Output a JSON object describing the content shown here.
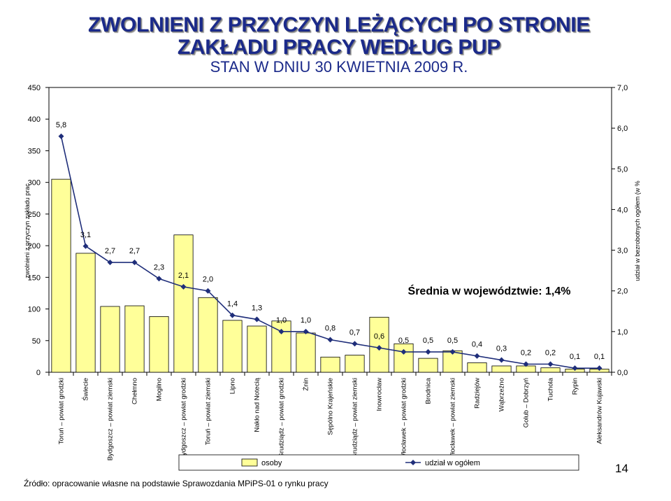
{
  "title_line1": "ZWOLNIENI Z PRZYCZYN LEŻĄCYCH PO STRONIE",
  "title_line2": "ZAKŁADU PRACY WEDŁUG PUP",
  "subtitle": "STAN W DNIU 30 KWIETNIA 2009 R.",
  "source": "Źródło: opracowanie własne na podstawie Sprawozdania MPiPS-01 o rynku pracy",
  "page_number": "14",
  "colors": {
    "bar": "#ffff99",
    "line": "#1f2e7a",
    "title": "#1b2a8a"
  },
  "chart_data": {
    "type": "bar",
    "categories": [
      "Toruń – powiat grodzki",
      "Świecie",
      "Bydgoszcz – powiat ziemski",
      "Chełmno",
      "Mogilno",
      "Bydgoszcz – powiat grodzki",
      "Toruń – powiat ziemski",
      "Lipno",
      "Nakło nad Notecią",
      "Grudziądz – powiat grodzki",
      "Żnin",
      "Sępólno Krajeńskie",
      "Grudziądz – powiat ziemski",
      "Inowrocław",
      "Włocławek – powiat grodzki",
      "Brodnica",
      "Włocławek – powiat ziemski",
      "Radziejów",
      "Wąbrzeźno",
      "Golub – Dobrzyń",
      "Tuchola",
      "Rypin",
      "Aleksandrów Kujawski"
    ],
    "series": [
      {
        "name": "osoby",
        "axis": "left",
        "type": "bar",
        "values": [
          305,
          188,
          104,
          105,
          88,
          217,
          118,
          82,
          73,
          81,
          62,
          24,
          27,
          87,
          45,
          22,
          34,
          15,
          10,
          10,
          7,
          5,
          5
        ]
      },
      {
        "name": "udział w ogółem",
        "axis": "right",
        "type": "line",
        "values": [
          5.8,
          3.1,
          2.7,
          2.7,
          2.3,
          2.1,
          2.0,
          1.4,
          1.3,
          1.0,
          1.0,
          0.8,
          0.7,
          0.6,
          0.5,
          0.5,
          0.5,
          0.4,
          0.3,
          0.2,
          0.2,
          0.1,
          0.1
        ],
        "labels": [
          "5,8",
          "3,1",
          "2,7",
          "2,7",
          "2,3",
          "2,1",
          "2,0",
          "1,4",
          "1,3",
          "1,0",
          "1,0",
          "0,8",
          "0,7",
          "0,6",
          "0,5",
          "0,5",
          "0,5",
          "0,4",
          "0,3",
          "0,2",
          "0,2",
          "0,1",
          "0,1"
        ]
      }
    ],
    "ylabel_left": "zwolnieni z przyczyn zakładu prac",
    "ylabel_right": "udział w bezrobotnych ogółem (w %",
    "ylim_left": [
      0,
      450
    ],
    "yticks_left": [
      "0",
      "50",
      "100",
      "150",
      "200",
      "250",
      "300",
      "350",
      "400",
      "450"
    ],
    "ylim_right": [
      0,
      7
    ],
    "yticks_right": [
      "0,0",
      "1,0",
      "2,0",
      "3,0",
      "4,0",
      "5,0",
      "6,0",
      "7,0"
    ],
    "annotation": "Średnia w województwie: 1,4%",
    "legend": {
      "position": "bottom",
      "items": [
        "osoby",
        "udział w ogółem"
      ]
    },
    "grid": false
  }
}
